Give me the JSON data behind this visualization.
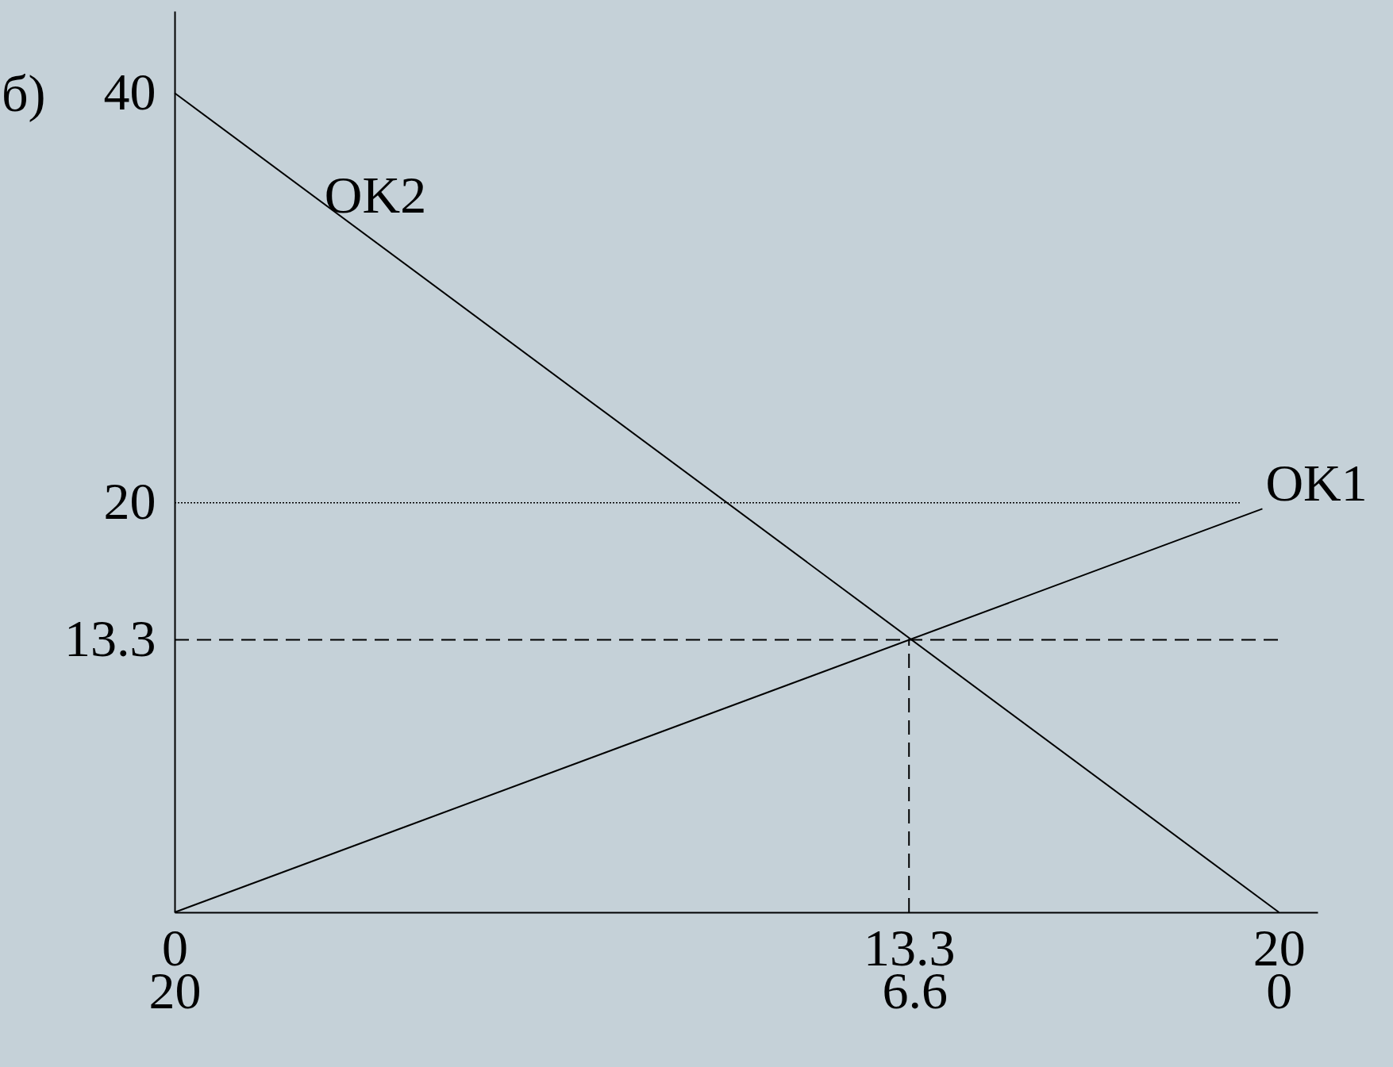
{
  "chart_data": {
    "type": "line",
    "annotations": [
      "б)"
    ],
    "xlim": [
      0,
      20.7
    ],
    "xticks": [
      0,
      13.3,
      20
    ],
    "x2lim": [
      20,
      -0.7
    ],
    "x2ticks": [
      20,
      6.6,
      0
    ],
    "ylim": [
      0,
      44
    ],
    "yticks": [
      13.3,
      20,
      40
    ],
    "series": [
      {
        "name": "OK2",
        "color": "#000000",
        "x": [
          0,
          20
        ],
        "values": [
          40,
          0
        ]
      },
      {
        "name": "OK1",
        "color": "#000000",
        "x": [
          0,
          19.7
        ],
        "values": [
          0,
          19.7
        ]
      },
      {
        "color": "#000000",
        "x": [
          13.3,
          13.3
        ],
        "values": [
          0,
          13.3
        ],
        "line_style": "dashed"
      },
      {
        "color": "#000000",
        "x": [
          0,
          19.3
        ],
        "values": [
          20,
          20
        ],
        "line_style": "dotted"
      },
      {
        "color": "#000000",
        "x": [
          0,
          20
        ],
        "values": [
          13.3,
          13.3
        ],
        "line_style": "dashed"
      }
    ],
    "grid": false
  }
}
